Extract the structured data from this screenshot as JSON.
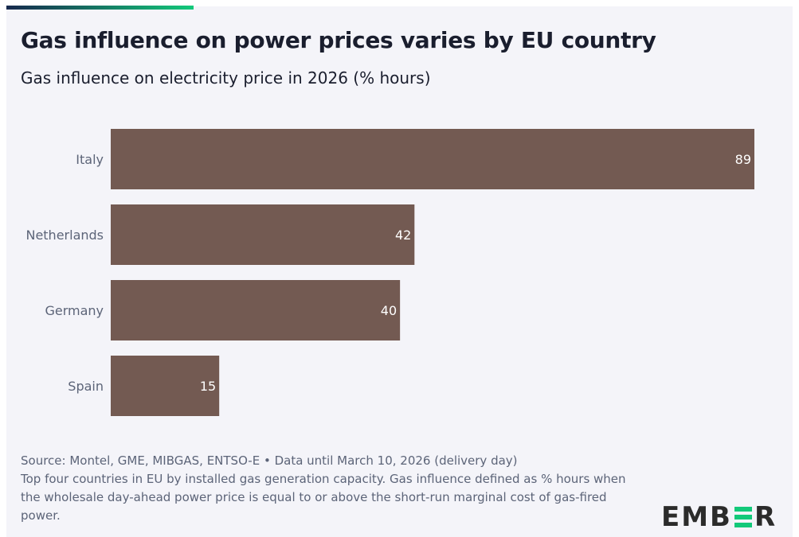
{
  "title": "Gas influence on power prices varies by EU country",
  "subtitle": "Gas influence on electricity price in 2026 (% hours)",
  "chart_data": {
    "type": "bar",
    "orientation": "horizontal",
    "categories": [
      "Italy",
      "Netherlands",
      "Germany",
      "Spain"
    ],
    "values": [
      89,
      42,
      40,
      15
    ],
    "data_labels": [
      "89",
      "42",
      "40",
      "15"
    ],
    "bar_color": "#735a52",
    "xlim": [
      0,
      89
    ],
    "grid": false
  },
  "footer": {
    "source": "Source: Montel, GME, MIBGAS, ENTSO-E • Data until March 10, 2026 (delivery day)",
    "note": "Top four countries in EU by installed gas generation capacity. Gas influence defined as % hours when the wholesale day-ahead power price is equal to or above the short-run marginal cost of gas-fired power."
  },
  "logo": {
    "text": "EMBER",
    "accent": "#13c97a"
  }
}
